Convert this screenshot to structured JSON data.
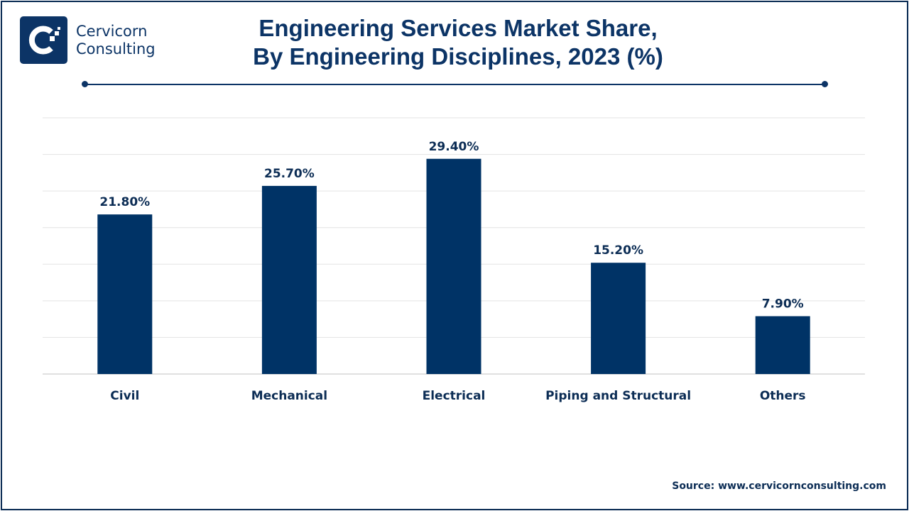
{
  "logo": {
    "line1": "Cervicorn",
    "line2": "Consulting"
  },
  "title_line1": "Engineering Services Market Share,",
  "title_line2": "By Engineering Disciplines, 2023 (%)",
  "source": "Source: www.cervicornconsulting.com",
  "chart_data": {
    "type": "bar",
    "title": "Engineering Services Market Share, By Engineering Disciplines, 2023 (%)",
    "categories": [
      "Civil",
      "Mechanical",
      "Electrical",
      "Piping and Structural",
      "Others"
    ],
    "values": [
      21.8,
      25.7,
      29.4,
      15.2,
      7.9
    ],
    "data_labels": [
      "21.80%",
      "25.70%",
      "29.40%",
      "15.20%",
      "7.90%"
    ],
    "xlabel": "",
    "ylabel": "",
    "ylim": [
      0,
      35
    ],
    "grid": true,
    "bar_color": "#003366"
  }
}
